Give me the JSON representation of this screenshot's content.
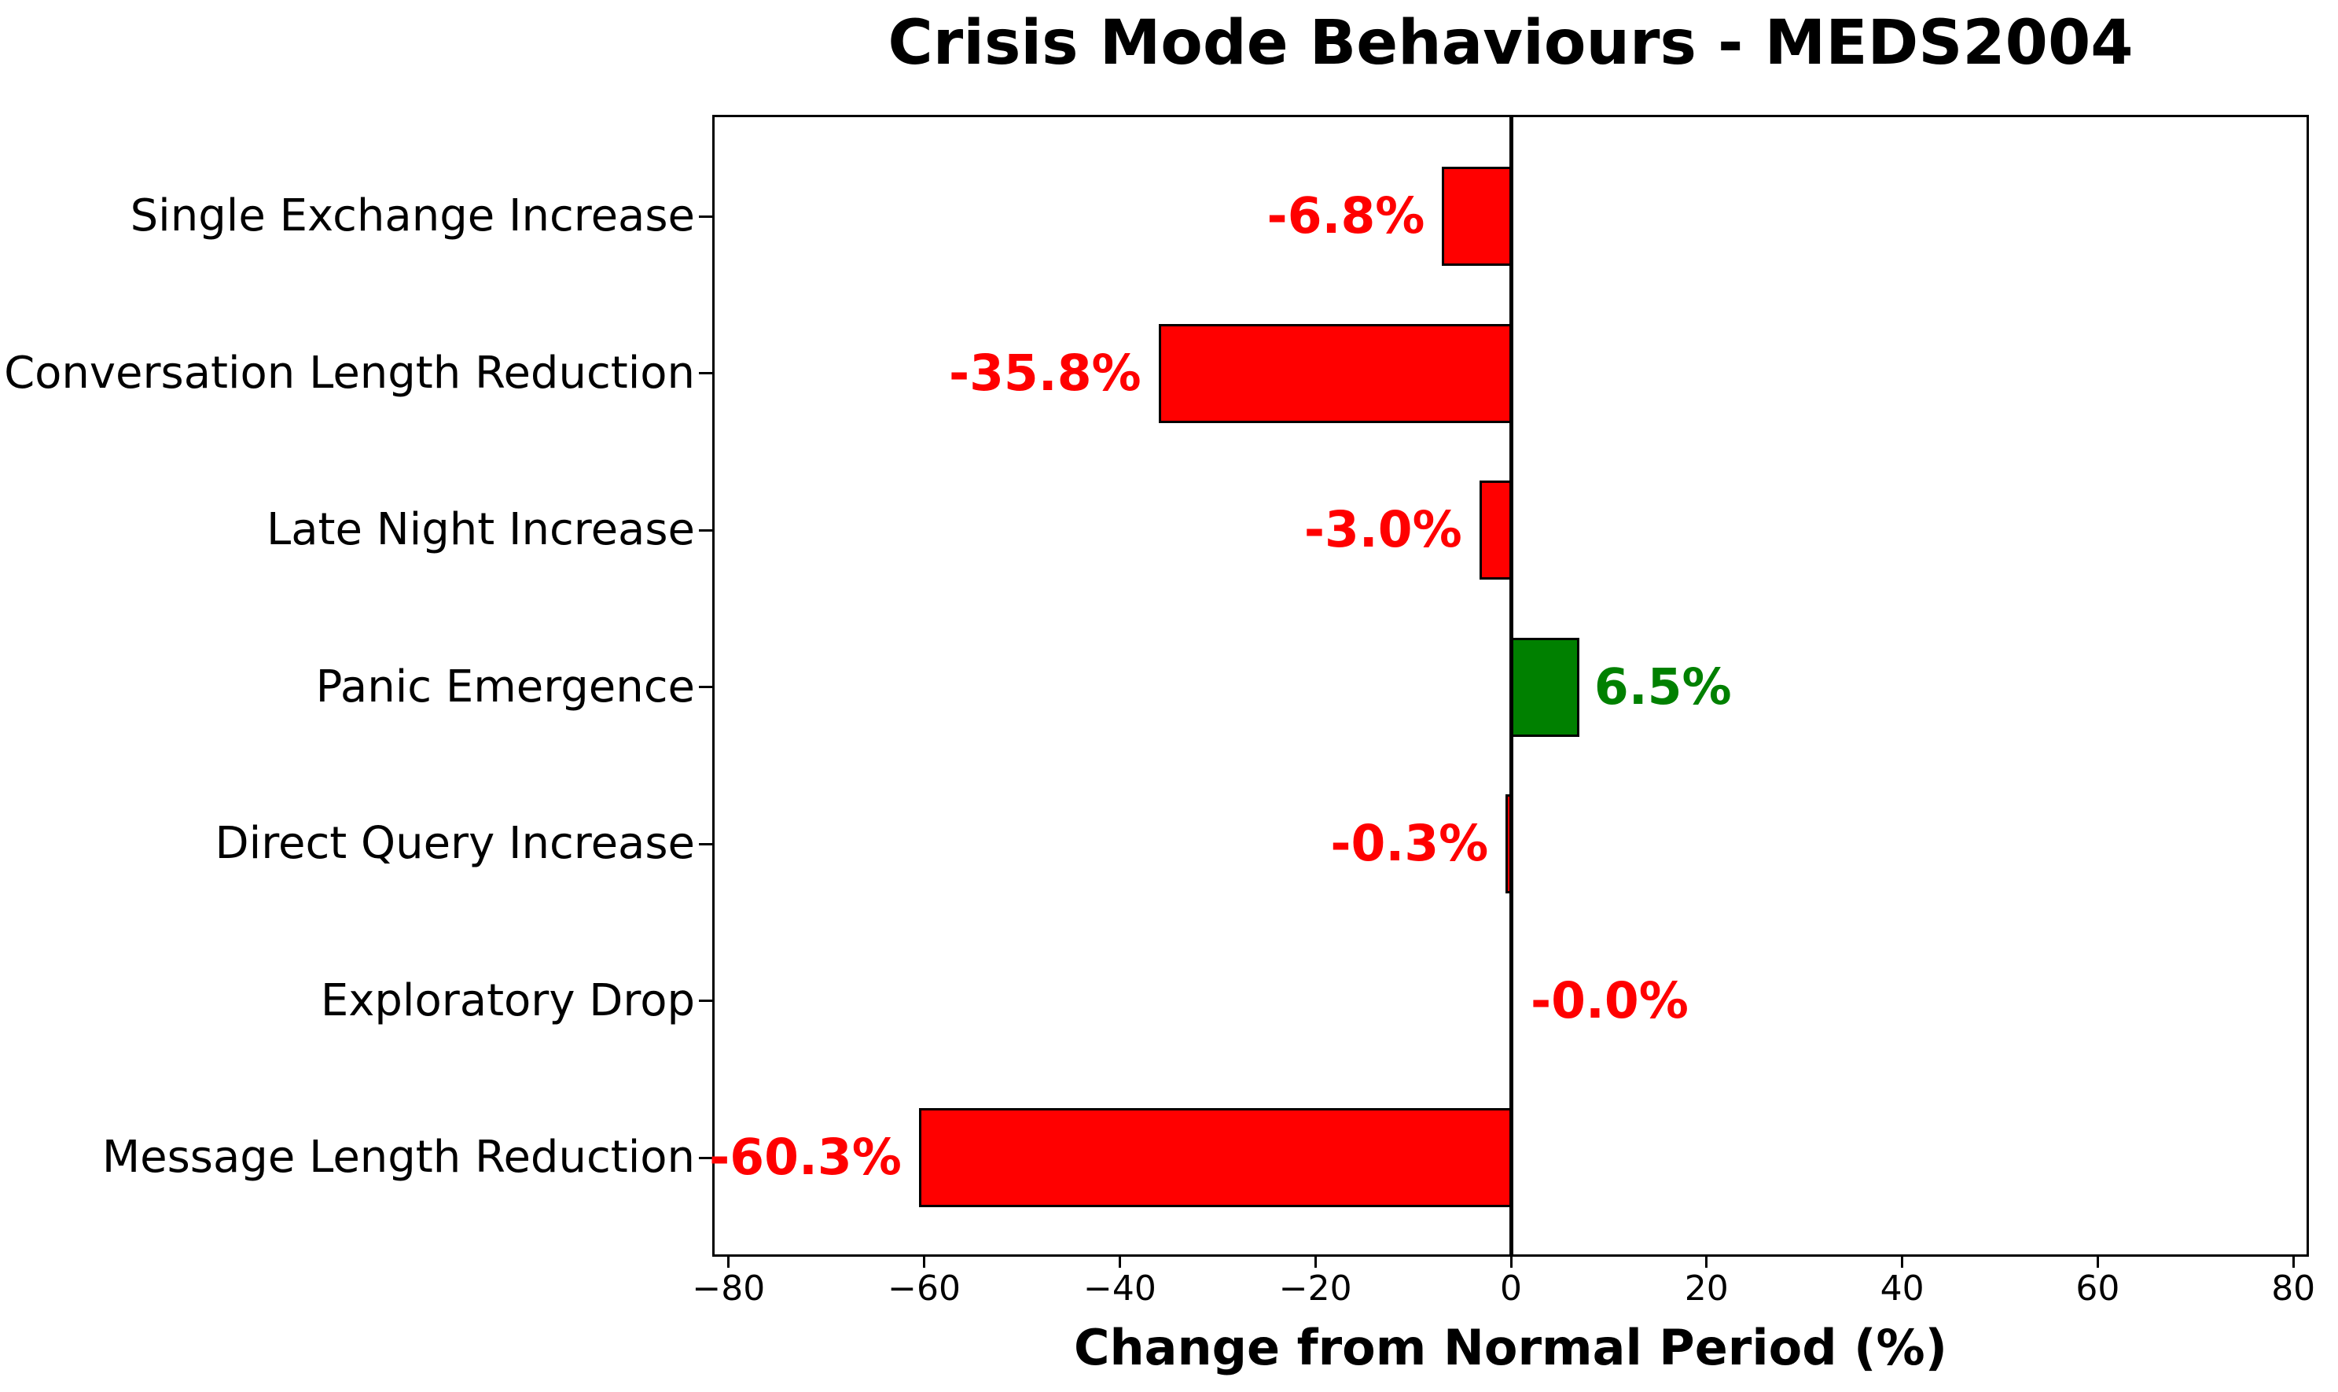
{
  "chart_data": {
    "type": "bar",
    "orientation": "horizontal",
    "title": "Crisis Mode Behaviours - MEDS2004",
    "xlabel": "Change from Normal Period (%)",
    "ylabel": "",
    "xlim": [
      -81.5,
      81.5
    ],
    "grid": false,
    "zero_line": true,
    "legend": "none",
    "background": "#ffffff",
    "axis_color": "#000000",
    "negative_color": "#ff0000",
    "positive_color": "#008000",
    "xticks": [
      -80,
      -60,
      -40,
      -20,
      0,
      20,
      40,
      60,
      80
    ],
    "xtick_labels": [
      "−80",
      "−60",
      "−40",
      "−20",
      "0",
      "20",
      "40",
      "60",
      "80"
    ],
    "categories": [
      "Single Exchange Increase",
      "Conversation Length Reduction",
      "Late Night Increase",
      "Panic Emergence",
      "Direct Query Increase",
      "Exploratory Drop",
      "Message Length Reduction"
    ],
    "values": [
      -6.8,
      -35.8,
      -3.0,
      6.5,
      -0.3,
      -0.0,
      -60.3
    ],
    "bar_labels": [
      "-6.8%",
      "-35.8%",
      "-3.0%",
      "6.5%",
      "-0.3%",
      "-0.0%",
      "-60.3%"
    ],
    "bar_colors": [
      "#ff0000",
      "#ff0000",
      "#ff0000",
      "#008000",
      "#ff0000",
      "#ff0000",
      "#ff0000"
    ],
    "label_sides": [
      "left",
      "left",
      "left",
      "right",
      "left",
      "right",
      "left"
    ]
  }
}
